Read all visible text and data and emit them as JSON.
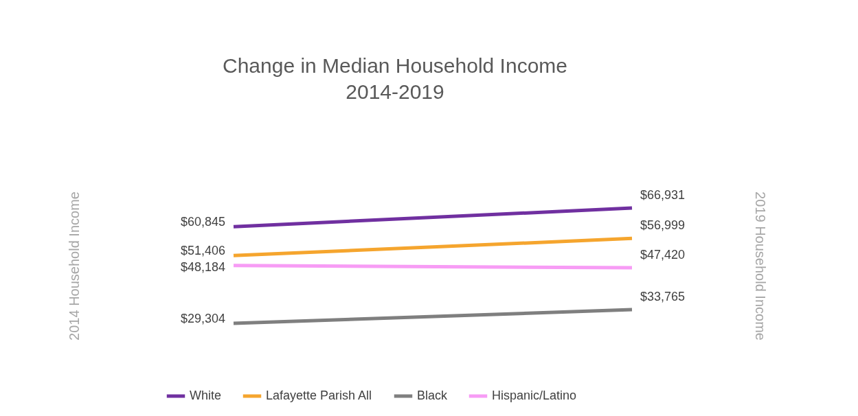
{
  "chart_data": {
    "type": "line",
    "title": "Change in Median Household Income",
    "subtitle": "2014-2019",
    "ylabel": "2014 Household Income",
    "y2label": "2019 Household Income",
    "categories": [
      null,
      null
    ],
    "tick_labels": false,
    "grid": false,
    "legend": "bottom",
    "marker": "none",
    "line_style": "solid",
    "series": [
      {
        "name": "White",
        "color": "#7030a0",
        "values": [
          60845,
          66931
        ],
        "value_labels": [
          "$60,845",
          "$66,931"
        ]
      },
      {
        "name": "Lafayette Parish All",
        "color": "#f5a52e",
        "values": [
          51406,
          56999
        ],
        "value_labels": [
          "$51,406",
          "$56,999"
        ]
      },
      {
        "name": "Black",
        "color": "#7f7f7f",
        "values": [
          29304,
          33765
        ],
        "value_labels": [
          "$29,304",
          "$33,765"
        ]
      },
      {
        "name": "Hispanic/Latino",
        "color": "#f79cf5",
        "values": [
          48184,
          47420
        ],
        "value_labels": [
          "$48,184",
          "$47,420"
        ]
      }
    ]
  }
}
